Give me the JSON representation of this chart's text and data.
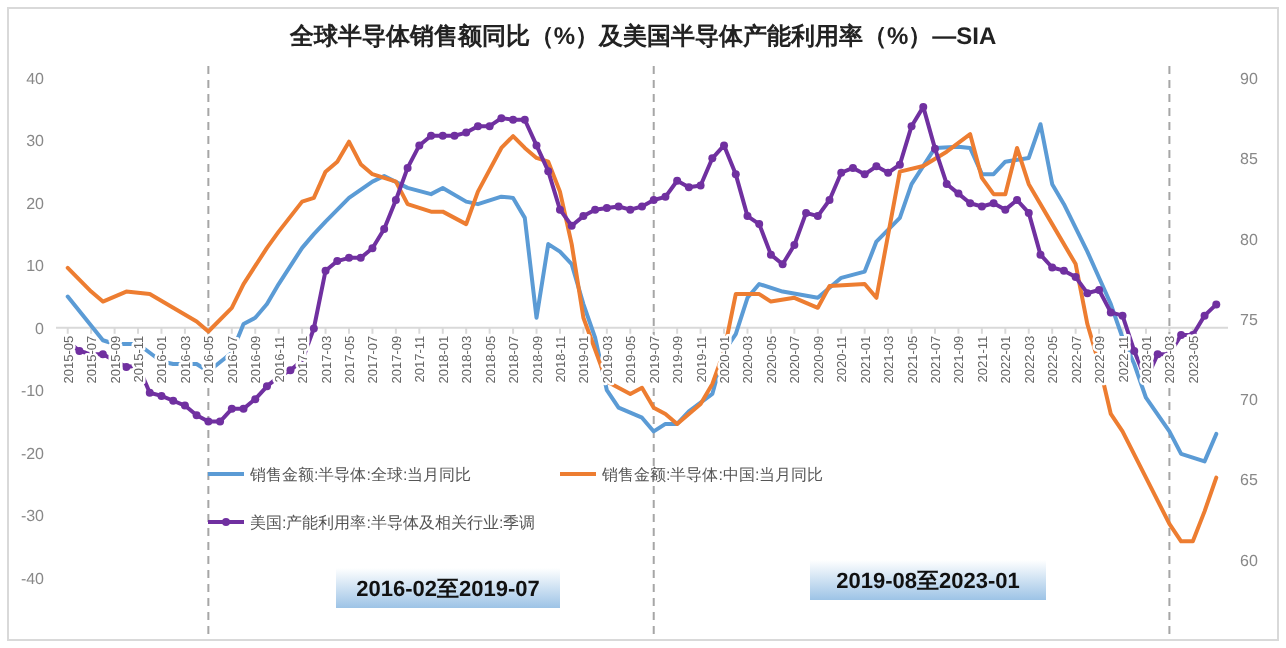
{
  "chart_data": {
    "type": "line",
    "title": "全球半导体销售额同比（%）及美国半导体产能利用率（%）—SIA",
    "xlim": [
      "2015-04",
      "2023-08"
    ],
    "xticks": [
      "2015-05",
      "2015-07",
      "2015-09",
      "2015-11",
      "2016-01",
      "2016-03",
      "2016-05",
      "2016-07",
      "2016-09",
      "2016-11",
      "2017-01",
      "2017-03",
      "2017-05",
      "2017-07",
      "2017-09",
      "2017-11",
      "2018-01",
      "2018-03",
      "2018-05",
      "2018-07",
      "2018-09",
      "2018-11",
      "2019-01",
      "2019-03",
      "2019-05",
      "2019-07",
      "2019-09",
      "2019-11",
      "2020-01",
      "2020-03",
      "2020-05",
      "2020-07",
      "2020-09",
      "2020-11",
      "2021-01",
      "2021-03",
      "2021-05",
      "2021-07",
      "2021-09",
      "2021-11",
      "2022-01",
      "2022-03",
      "2022-05",
      "2022-07",
      "2022-09",
      "2022-11",
      "2023-01",
      "2023-03",
      "2023-05"
    ],
    "ylim": [
      -50,
      40
    ],
    "yticks": [
      -40,
      -30,
      -20,
      -10,
      0,
      10,
      20,
      30,
      40
    ],
    "y2lim": [
      55,
      90
    ],
    "y2ticks": [
      60,
      65,
      70,
      75,
      80,
      85,
      90
    ],
    "legend": "bottom",
    "series": [
      {
        "name": "销售金额:半导体:全球:当月同比",
        "color": "#5b9bd5",
        "x": [
          "2015-05",
          "2015-08",
          "2015-09",
          "2015-11",
          "2016-01",
          "2016-02",
          "2016-04",
          "2016-05",
          "2016-07",
          "2016-08",
          "2016-09",
          "2016-10",
          "2016-11",
          "2017-01",
          "2017-02",
          "2017-03",
          "2017-05",
          "2017-07",
          "2017-08",
          "2017-10",
          "2017-12",
          "2018-01",
          "2018-03",
          "2018-04",
          "2018-06",
          "2018-07",
          "2018-08",
          "2018-09",
          "2018-10",
          "2018-11",
          "2018-12",
          "2019-01",
          "2019-02",
          "2019-03",
          "2019-04",
          "2019-06",
          "2019-07",
          "2019-08",
          "2019-09",
          "2019-10",
          "2019-12",
          "2020-01",
          "2020-02",
          "2020-03",
          "2020-04",
          "2020-06",
          "2020-09",
          "2020-11",
          "2021-01",
          "2021-02",
          "2021-04",
          "2021-05",
          "2021-07",
          "2021-09",
          "2021-10",
          "2021-11",
          "2021-12",
          "2022-01",
          "2022-03",
          "2022-04",
          "2022-05",
          "2022-06",
          "2022-08",
          "2022-10",
          "2022-11",
          "2022-12",
          "2023-01",
          "2023-03",
          "2023-04",
          "2023-06",
          "2023-07"
        ],
        "values": [
          5,
          -2,
          -2.6,
          -2.6,
          -5.4,
          -5.8,
          -5.8,
          -7,
          -4,
          0.6,
          1.6,
          3.8,
          7,
          12.8,
          15,
          17,
          20.8,
          23.4,
          24.3,
          22.4,
          21.4,
          22.4,
          20.2,
          19.8,
          21,
          20.8,
          17.6,
          1.6,
          13.4,
          12.2,
          10.2,
          3.8,
          -1.6,
          -10,
          -12.8,
          -14.4,
          -16.6,
          -15.4,
          -15.4,
          -13.4,
          -10.6,
          -3.8,
          -1,
          4.8,
          7,
          5.8,
          4.8,
          8,
          9,
          13.8,
          17.6,
          23,
          28.8,
          29,
          28.8,
          24.6,
          24.6,
          26.6,
          27.2,
          32.6,
          23,
          19.8,
          12.2,
          3.8,
          -1.6,
          -5.8,
          -11.2,
          -16.6,
          -20.2,
          -21.4,
          -17
        ]
      },
      {
        "name": "销售金额:半导体:中国:当月同比",
        "color": "#ed7d31",
        "x": [
          "2015-05",
          "2015-07",
          "2015-08",
          "2015-10",
          "2015-12",
          "2016-02",
          "2016-04",
          "2016-05",
          "2016-07",
          "2016-08",
          "2016-10",
          "2016-11",
          "2017-01",
          "2017-02",
          "2017-03",
          "2017-04",
          "2017-05",
          "2017-06",
          "2017-07",
          "2017-09",
          "2017-10",
          "2017-12",
          "2018-01",
          "2018-03",
          "2018-04",
          "2018-06",
          "2018-07",
          "2018-08",
          "2018-09",
          "2018-10",
          "2018-11",
          "2018-12",
          "2019-01",
          "2019-03",
          "2019-04",
          "2019-05",
          "2019-06",
          "2019-07",
          "2019-08",
          "2019-09",
          "2019-11",
          "2019-12",
          "2020-01",
          "2020-02",
          "2020-04",
          "2020-05",
          "2020-07",
          "2020-09",
          "2020-10",
          "2021-01",
          "2021-02",
          "2021-04",
          "2021-06",
          "2021-08",
          "2021-10",
          "2021-11",
          "2021-12",
          "2022-01",
          "2022-02",
          "2022-03",
          "2022-05",
          "2022-07",
          "2022-08",
          "2022-09",
          "2022-10",
          "2022-11",
          "2023-01",
          "2023-03",
          "2023-04",
          "2023-05",
          "2023-06",
          "2023-07"
        ],
        "values": [
          9.6,
          5.8,
          4.2,
          5.8,
          5.4,
          3.2,
          1,
          -0.6,
          3.2,
          7,
          12.8,
          15.4,
          20.2,
          20.8,
          25,
          26.6,
          29.8,
          26.2,
          24.6,
          23.4,
          19.8,
          18.6,
          18.6,
          16.6,
          21.8,
          28.8,
          30.7,
          28.8,
          27.2,
          26.6,
          21.8,
          13.4,
          1.6,
          -8.6,
          -9.6,
          -10.6,
          -9.6,
          -12.8,
          -13.8,
          -15.4,
          -12.2,
          -9,
          -3.8,
          5.4,
          5.4,
          4.2,
          4.8,
          3.2,
          6.7,
          7,
          4.8,
          25,
          25.9,
          28.2,
          31,
          24,
          21.4,
          21.4,
          28.8,
          23,
          16.6,
          10.2,
          0.6,
          -5.8,
          -13.8,
          -16.6,
          -24,
          -31.4,
          -34.2,
          -34.2,
          -29.4,
          -24
        ]
      },
      {
        "name": "美国:产能利用率:半导体及相关行业:季调",
        "color": "#7030a0",
        "axis": "y2",
        "marker": "circle",
        "x": [
          "2015-05",
          "2015-06",
          "2015-07",
          "2015-08",
          "2015-09",
          "2015-10",
          "2015-11",
          "2015-12",
          "2016-01",
          "2016-02",
          "2016-03",
          "2016-04",
          "2016-05",
          "2016-06",
          "2016-07",
          "2016-08",
          "2016-09",
          "2016-10",
          "2016-11",
          "2016-12",
          "2017-01",
          "2017-02",
          "2017-03",
          "2017-04",
          "2017-05",
          "2017-06",
          "2017-07",
          "2017-08",
          "2017-09",
          "2017-10",
          "2017-11",
          "2017-12",
          "2018-01",
          "2018-02",
          "2018-03",
          "2018-04",
          "2018-05",
          "2018-06",
          "2018-07",
          "2018-08",
          "2018-09",
          "2018-10",
          "2018-11",
          "2018-12",
          "2019-01",
          "2019-02",
          "2019-03",
          "2019-04",
          "2019-05",
          "2019-06",
          "2019-07",
          "2019-08",
          "2019-09",
          "2019-10",
          "2019-11",
          "2019-12",
          "2020-01",
          "2020-02",
          "2020-03",
          "2020-04",
          "2020-05",
          "2020-06",
          "2020-07",
          "2020-08",
          "2020-09",
          "2020-10",
          "2020-11",
          "2020-12",
          "2021-01",
          "2021-02",
          "2021-03",
          "2021-04",
          "2021-05",
          "2021-06",
          "2021-07",
          "2021-08",
          "2021-09",
          "2021-10",
          "2021-11",
          "2021-12",
          "2022-01",
          "2022-02",
          "2022-03",
          "2022-04",
          "2022-05",
          "2022-06",
          "2022-07",
          "2022-08",
          "2022-09",
          "2022-10",
          "2022-11",
          "2022-12",
          "2023-01",
          "2023-02",
          "2023-03",
          "2023-04",
          "2023-05",
          "2023-06",
          "2023-07"
        ],
        "values": [
          73.6,
          73,
          72.8,
          72.8,
          72.4,
          72,
          72.1,
          70.4,
          70.2,
          69.9,
          69.6,
          69,
          68.6,
          68.6,
          69.4,
          69.4,
          70,
          70.8,
          71.4,
          71.8,
          72.4,
          74.4,
          78,
          78.6,
          78.8,
          78.8,
          79.4,
          80.6,
          82.4,
          84.4,
          85.8,
          86.4,
          86.4,
          86.4,
          86.6,
          87,
          87,
          87.5,
          87.4,
          87.4,
          85.8,
          84.2,
          81.8,
          80.8,
          81.4,
          81.8,
          81.9,
          82,
          81.8,
          82,
          82.4,
          82.6,
          83.6,
          83.2,
          83.3,
          85,
          85.8,
          84,
          81.4,
          80.9,
          79,
          78.4,
          79.6,
          81.6,
          81.4,
          82.4,
          84.1,
          84.4,
          84,
          84.5,
          84.1,
          84.6,
          87,
          88.2,
          85.6,
          83.4,
          82.8,
          82.2,
          82,
          82.2,
          81.8,
          82.4,
          81.6,
          79,
          78.2,
          78,
          77.6,
          76.6,
          76.8,
          75.4,
          75.2,
          73,
          71.2,
          72.8,
          72.8,
          74,
          74,
          75.2,
          75.9
        ]
      }
    ],
    "ref_lines": [
      {
        "axis": "x",
        "value": "2016-05",
        "line_style": "dashed",
        "color": "#a6a6a6"
      },
      {
        "axis": "x",
        "value": "2019-07",
        "line_style": "dashed",
        "color": "#a6a6a6"
      },
      {
        "axis": "x",
        "value": "2023-03",
        "line_style": "dashed",
        "color": "#a6a6a6"
      }
    ],
    "annotations": [
      "2016-02至2019-07",
      "2019-08至2023-01"
    ]
  }
}
